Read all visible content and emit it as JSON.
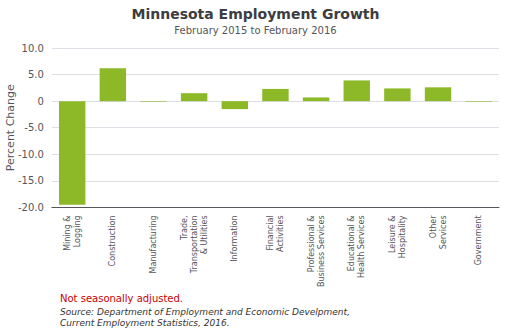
{
  "chart_data": {
    "type": "bar",
    "title": "Minnesota Employment Growth",
    "subtitle": "February 2015 to February 2016",
    "ylabel": "Percent Change",
    "categories": [
      "Mining &\nLogging",
      "Construction",
      "Manufacturing",
      "Trade,\nTransportation\n& Utilities",
      "Information",
      "Financial\nActivities",
      "Professional &\nBusiness Services",
      "Educational &\nHealth Services",
      "Leisure &\nHospitality",
      "Other\nServices",
      "Government"
    ],
    "values": [
      -19.5,
      6.2,
      -0.1,
      1.5,
      -1.5,
      2.3,
      0.7,
      3.9,
      2.4,
      2.6,
      -0.1
    ],
    "color": "#8db928",
    "ylim": [
      -20.0,
      10.0
    ],
    "yticks": [
      {
        "value": -20.0,
        "label": "-20.0"
      },
      {
        "value": -15.0,
        "label": "-15.0"
      },
      {
        "value": -10.0,
        "label": "-10.0"
      },
      {
        "value": -5.0,
        "label": "-5.0"
      },
      0,
      {
        "value": 5.0,
        "label": "5.0"
      },
      {
        "value": 10.0,
        "label": "10.0"
      }
    ],
    "grid": true,
    "note": "Not seasonally adjusted.",
    "source": "Source: Department of Employment and Economic Develpment,\nCurrent Employment Statistics, 2016."
  }
}
